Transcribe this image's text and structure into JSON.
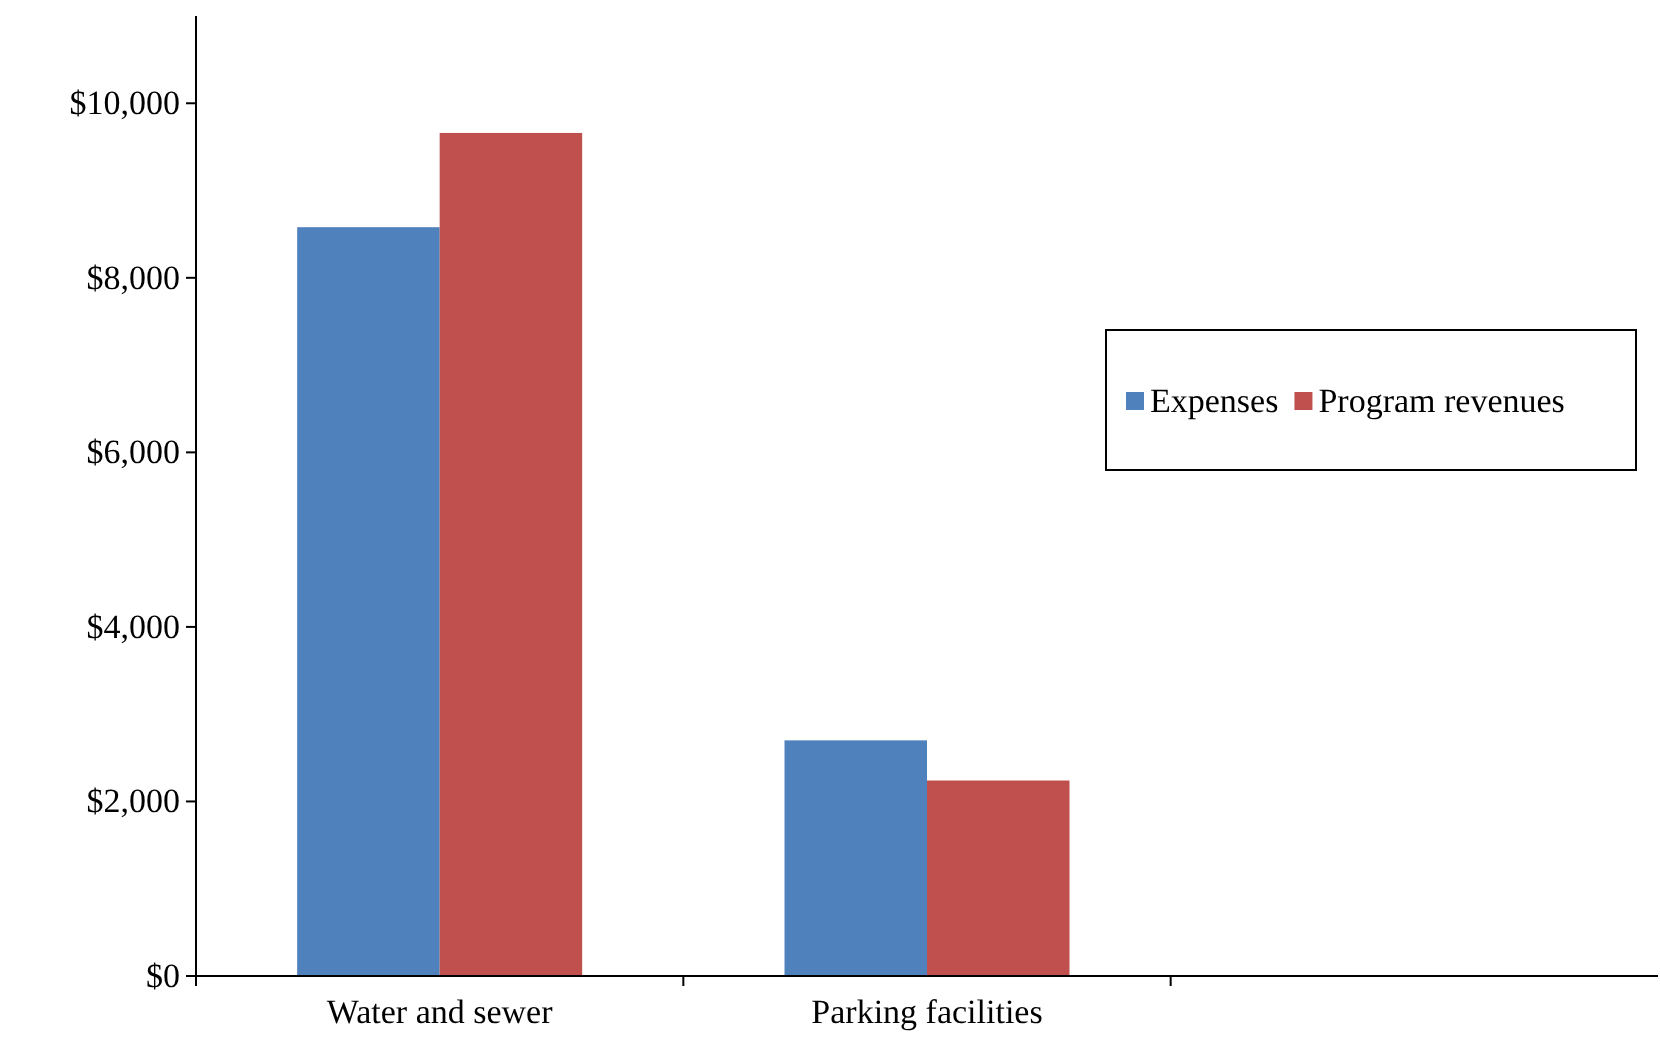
{
  "chart_data": {
    "type": "bar",
    "categories": [
      "Water and sewer",
      "Parking facilities",
      null
    ],
    "series": [
      {
        "name": "Expenses",
        "color": "#4f81bd",
        "values": [
          8580,
          2700,
          null
        ]
      },
      {
        "name": "Program revenues",
        "color": "#c0504d",
        "values": [
          9660,
          2240,
          null
        ]
      }
    ],
    "ylim": [
      0,
      11000
    ],
    "yticks": [
      {
        "value": 0,
        "label": "$0"
      },
      {
        "value": 2000,
        "label": "$2,000"
      },
      {
        "value": 4000,
        "label": "$4,000"
      },
      {
        "value": 6000,
        "label": "$6,000"
      },
      {
        "value": 8000,
        "label": "$8,000"
      },
      {
        "value": 10000,
        "label": "$10,000"
      }
    ],
    "grid": false,
    "legend": "right"
  }
}
